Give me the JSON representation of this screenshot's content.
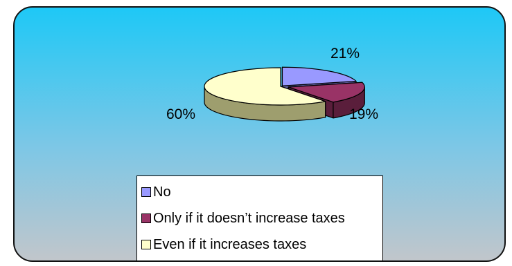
{
  "chart_data": {
    "type": "pie",
    "three_d": true,
    "categories": [
      "No",
      "Only if it doesn’t increase taxes",
      "Even if it increases taxes"
    ],
    "values": [
      21,
      19,
      60
    ],
    "data_labels": [
      "21%",
      "19%",
      "60%"
    ],
    "colors": [
      "#9999ff",
      "#993366",
      "#ffffcc"
    ],
    "side_colors": [
      "#5e5ea0",
      "#5a1e3b",
      "#9e9e6e"
    ],
    "legend_position": "bottom",
    "title": ""
  },
  "background": {
    "gradient_top": "#1ec8f6",
    "gradient_bottom": "#c1c6cb"
  }
}
